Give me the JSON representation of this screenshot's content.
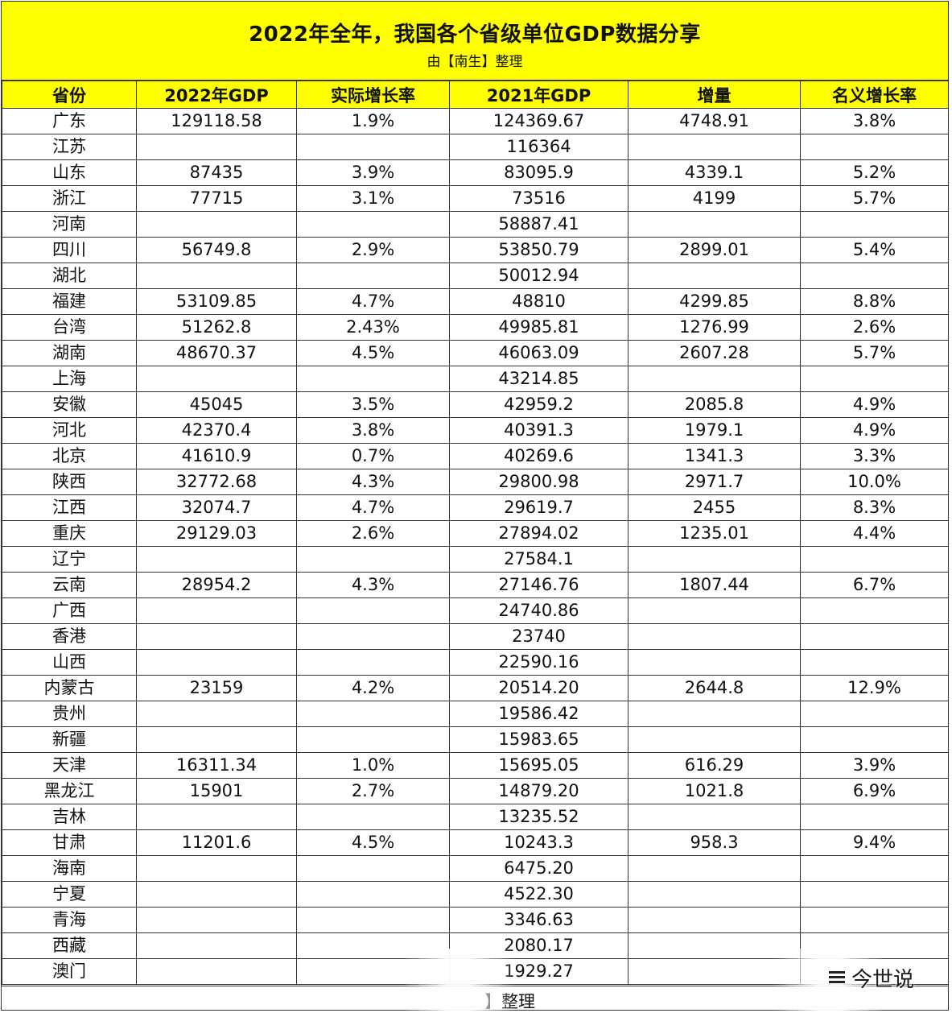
{
  "header": {
    "title": "2022年全年，我国各个省级单位GDP数据分享",
    "subtitle": "由【南生】整理"
  },
  "table": {
    "columns": [
      "省份",
      "2022年GDP",
      "实际增长率",
      "2021年GDP",
      "增量",
      "名义增长率"
    ],
    "rows": [
      [
        "广东",
        "129118.58",
        "1.9%",
        "124369.67",
        "4748.91",
        "3.8%"
      ],
      [
        "江苏",
        "",
        "",
        "116364",
        "",
        ""
      ],
      [
        "山东",
        "87435",
        "3.9%",
        "83095.9",
        "4339.1",
        "5.2%"
      ],
      [
        "浙江",
        "77715",
        "3.1%",
        "73516",
        "4199",
        "5.7%"
      ],
      [
        "河南",
        "",
        "",
        "58887.41",
        "",
        ""
      ],
      [
        "四川",
        "56749.8",
        "2.9%",
        "53850.79",
        "2899.01",
        "5.4%"
      ],
      [
        "湖北",
        "",
        "",
        "50012.94",
        "",
        ""
      ],
      [
        "福建",
        "53109.85",
        "4.7%",
        "48810",
        "4299.85",
        "8.8%"
      ],
      [
        "台湾",
        "51262.8",
        "2.43%",
        "49985.81",
        "1276.99",
        "2.6%"
      ],
      [
        "湖南",
        "48670.37",
        "4.5%",
        "46063.09",
        "2607.28",
        "5.7%"
      ],
      [
        "上海",
        "",
        "",
        "43214.85",
        "",
        ""
      ],
      [
        "安徽",
        "45045",
        "3.5%",
        "42959.2",
        "2085.8",
        "4.9%"
      ],
      [
        "河北",
        "42370.4",
        "3.8%",
        "40391.3",
        "1979.1",
        "4.9%"
      ],
      [
        "北京",
        "41610.9",
        "0.7%",
        "40269.6",
        "1341.3",
        "3.3%"
      ],
      [
        "陕西",
        "32772.68",
        "4.3%",
        "29800.98",
        "2971.7",
        "10.0%"
      ],
      [
        "江西",
        "32074.7",
        "4.7%",
        "29619.7",
        "2455",
        "8.3%"
      ],
      [
        "重庆",
        "29129.03",
        "2.6%",
        "27894.02",
        "1235.01",
        "4.4%"
      ],
      [
        "辽宁",
        "",
        "",
        "27584.1",
        "",
        ""
      ],
      [
        "云南",
        "28954.2",
        "4.3%",
        "27146.76",
        "1807.44",
        "6.7%"
      ],
      [
        "广西",
        "",
        "",
        "24740.86",
        "",
        ""
      ],
      [
        "香港",
        "",
        "",
        "23740",
        "",
        ""
      ],
      [
        "山西",
        "",
        "",
        "22590.16",
        "",
        ""
      ],
      [
        "内蒙古",
        "23159",
        "4.2%",
        "20514.20",
        "2644.8",
        "12.9%"
      ],
      [
        "贵州",
        "",
        "",
        "19586.42",
        "",
        ""
      ],
      [
        "新疆",
        "",
        "",
        "15983.65",
        "",
        ""
      ],
      [
        "天津",
        "16311.34",
        "1.0%",
        "15695.05",
        "616.29",
        "3.9%"
      ],
      [
        "黑龙江",
        "15901",
        "2.7%",
        "14879.20",
        "1021.8",
        "6.9%"
      ],
      [
        "吉林",
        "",
        "",
        "13235.52",
        "",
        ""
      ],
      [
        "甘肃",
        "11201.6",
        "4.5%",
        "10243.3",
        "958.3",
        "9.4%"
      ],
      [
        "海南",
        "",
        "",
        "6475.20",
        "",
        ""
      ],
      [
        "宁夏",
        "",
        "",
        "4522.30",
        "",
        ""
      ],
      [
        "青海",
        "",
        "",
        "3346.63",
        "",
        ""
      ],
      [
        "西藏",
        "",
        "",
        "2080.17",
        "",
        ""
      ],
      [
        "澳门",
        "",
        "",
        "1929.27",
        "",
        ""
      ]
    ]
  },
  "footer": {
    "text": "】整理"
  },
  "watermark": {
    "text": "今世说"
  }
}
